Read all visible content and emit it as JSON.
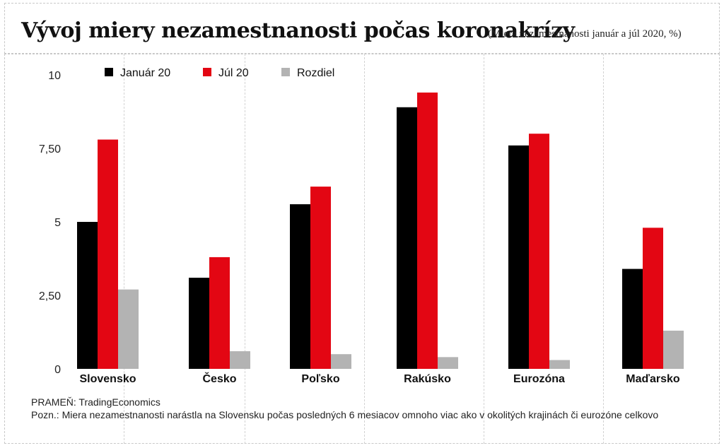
{
  "title": "Vývoj miery nezamestnanosti počas koronakrízy",
  "subtitle": "(Miera nezamestnanosti január a júl 2020, %)",
  "source": "PRAMEŇ: TradingEconomics",
  "note": "Pozn.: Miera nezamestnanosti narástla na Slovensku počas posledných 6 mesiacov omnoho viac ako v okolitých krajinách či eurozóne celkovo",
  "chart_data": {
    "type": "bar",
    "categories": [
      "Slovensko",
      "Česko",
      "Poľsko",
      "Rakúsko",
      "Eurozóna",
      "Maďarsko"
    ],
    "series": [
      {
        "name": "Január 20",
        "color": "#000000",
        "values": [
          5.0,
          3.1,
          5.6,
          8.9,
          7.6,
          3.4
        ]
      },
      {
        "name": "Júl 20",
        "color": "#e30613",
        "values": [
          7.8,
          3.8,
          6.2,
          9.4,
          8.0,
          4.8
        ]
      },
      {
        "name": "Rozdiel",
        "color": "#b3b3b3",
        "values": [
          2.7,
          0.6,
          0.5,
          0.4,
          0.3,
          1.3
        ]
      }
    ],
    "yticks": [
      "0",
      "2,50",
      "5",
      "7,50",
      "10"
    ],
    "ylim": [
      0,
      10
    ],
    "legend": "top-left",
    "grid": false
  }
}
